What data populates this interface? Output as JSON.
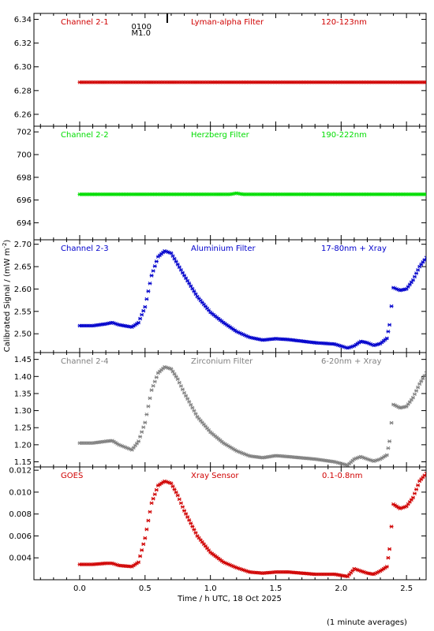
{
  "figure": {
    "ylabel": "Calibrated Signal / (mW m",
    "ylabel_sup": "-2",
    "ylabel_close": ")",
    "xlabel": "Time / h UTC, 18 Oct 2025",
    "footnote": "(1 minute averages)"
  },
  "flare_marker": {
    "class_label": "M1.0",
    "time_label": "0100",
    "x": 0.67
  },
  "chart_data": [
    {
      "type": "scatter",
      "channel": "Channel 2-1",
      "filter": "Lyman-alpha Filter",
      "band": "120-123nm",
      "color": "#d00000",
      "xlim": [
        -0.35,
        2.65
      ],
      "ylim": [
        6.25,
        6.345
      ],
      "yticks": [
        6.26,
        6.28,
        6.3,
        6.32,
        6.34
      ],
      "ytick_labels": [
        "6.26",
        "6.28",
        "6.30",
        "6.32",
        "6.34"
      ],
      "x": [
        0.0,
        0.1,
        0.2,
        0.3,
        0.4,
        0.5,
        0.6,
        0.7,
        0.8,
        0.9,
        1.0,
        1.2,
        1.4,
        1.6,
        1.8,
        2.0,
        2.2,
        2.4,
        2.6,
        2.65
      ],
      "y": [
        6.287,
        6.287,
        6.287,
        6.287,
        6.287,
        6.287,
        6.287,
        6.287,
        6.287,
        6.287,
        6.287,
        6.287,
        6.287,
        6.287,
        6.287,
        6.287,
        6.287,
        6.287,
        6.287,
        6.287
      ]
    },
    {
      "type": "scatter",
      "channel": "Channel 2-2",
      "filter": "Herzberg Filter",
      "band": "190-222nm",
      "color": "#00dd00",
      "xlim": [
        -0.35,
        2.65
      ],
      "ylim": [
        692.5,
        702.5
      ],
      "yticks": [
        694,
        696,
        698,
        700,
        702
      ],
      "ytick_labels": [
        "694",
        "696",
        "698",
        "700",
        "702"
      ],
      "x": [
        0.0,
        0.2,
        0.4,
        0.6,
        1.0,
        1.15,
        1.2,
        1.25,
        1.4,
        1.6,
        1.8,
        2.0,
        2.2,
        2.4,
        2.65
      ],
      "y": [
        696.5,
        696.5,
        696.5,
        696.5,
        696.5,
        696.5,
        696.6,
        696.5,
        696.5,
        696.5,
        696.5,
        696.5,
        696.5,
        696.5,
        696.5
      ]
    },
    {
      "type": "scatter",
      "channel": "Channel 2-3",
      "filter": "Aluminium Filter",
      "band": "17-80nm + Xray",
      "color": "#0000cc",
      "xlim": [
        -0.35,
        2.65
      ],
      "ylim": [
        2.458,
        2.71
      ],
      "yticks": [
        2.5,
        2.55,
        2.6,
        2.65,
        2.7
      ],
      "ytick_labels": [
        "2.50",
        "2.55",
        "2.60",
        "2.65",
        "2.70"
      ],
      "x": [
        0.0,
        0.1,
        0.2,
        0.25,
        0.3,
        0.4,
        0.45,
        0.5,
        0.55,
        0.6,
        0.65,
        0.7,
        0.75,
        0.8,
        0.9,
        1.0,
        1.1,
        1.2,
        1.3,
        1.4,
        1.5,
        1.6,
        1.8,
        1.95,
        2.05,
        2.1,
        2.15,
        2.2,
        2.25,
        2.3,
        2.35,
        2.37,
        2.4,
        2.45,
        2.5,
        2.55,
        2.6,
        2.65
      ],
      "y": [
        2.518,
        2.518,
        2.522,
        2.525,
        2.52,
        2.515,
        2.525,
        2.56,
        2.63,
        2.672,
        2.685,
        2.68,
        2.655,
        2.63,
        2.583,
        2.548,
        2.525,
        2.505,
        2.492,
        2.486,
        2.489,
        2.487,
        2.48,
        2.477,
        2.468,
        2.473,
        2.483,
        2.48,
        2.474,
        2.478,
        2.49,
        2.52,
        2.603,
        2.597,
        2.6,
        2.62,
        2.65,
        2.67
      ]
    },
    {
      "type": "scatter",
      "channel": "Channel 2-4",
      "filter": "Zirconium Filter",
      "band": "6-20nm + Xray",
      "color": "#808080",
      "xlim": [
        -0.35,
        2.65
      ],
      "ylim": [
        1.135,
        1.47
      ],
      "yticks": [
        1.15,
        1.2,
        1.25,
        1.3,
        1.35,
        1.4,
        1.45
      ],
      "ytick_labels": [
        "1.15",
        "1.20",
        "1.25",
        "1.30",
        "1.35",
        "1.40",
        "1.45"
      ],
      "x": [
        0.0,
        0.1,
        0.2,
        0.25,
        0.3,
        0.4,
        0.45,
        0.5,
        0.55,
        0.6,
        0.65,
        0.7,
        0.75,
        0.8,
        0.9,
        1.0,
        1.1,
        1.2,
        1.3,
        1.4,
        1.5,
        1.6,
        1.8,
        1.95,
        2.05,
        2.1,
        2.15,
        2.2,
        2.25,
        2.3,
        2.35,
        2.37,
        2.4,
        2.45,
        2.5,
        2.55,
        2.6,
        2.65
      ],
      "y": [
        1.205,
        1.205,
        1.21,
        1.212,
        1.2,
        1.185,
        1.21,
        1.265,
        1.36,
        1.41,
        1.428,
        1.422,
        1.392,
        1.352,
        1.282,
        1.237,
        1.205,
        1.182,
        1.167,
        1.162,
        1.168,
        1.165,
        1.158,
        1.15,
        1.14,
        1.158,
        1.165,
        1.158,
        1.152,
        1.158,
        1.17,
        1.21,
        1.318,
        1.308,
        1.312,
        1.338,
        1.378,
        1.41
      ]
    },
    {
      "type": "scatter",
      "channel": "GOES",
      "filter": "Xray Sensor",
      "band": "0.1-0.8nm",
      "color": "#d00000",
      "xlim": [
        -0.35,
        2.65
      ],
      "ylim": [
        0.002,
        0.0123
      ],
      "yticks": [
        0.004,
        0.006,
        0.008,
        0.01,
        0.012
      ],
      "ytick_labels": [
        "0.004",
        "0.006",
        "0.008",
        "0.010",
        "0.012"
      ],
      "x": [
        0.0,
        0.1,
        0.2,
        0.25,
        0.3,
        0.4,
        0.45,
        0.5,
        0.55,
        0.6,
        0.65,
        0.7,
        0.75,
        0.8,
        0.9,
        1.0,
        1.1,
        1.2,
        1.3,
        1.4,
        1.5,
        1.6,
        1.8,
        1.95,
        2.05,
        2.1,
        2.15,
        2.2,
        2.25,
        2.3,
        2.35,
        2.37,
        2.4,
        2.45,
        2.5,
        2.55,
        2.6,
        2.65
      ],
      "y": [
        0.0034,
        0.0034,
        0.0035,
        0.0035,
        0.0033,
        0.0032,
        0.0036,
        0.0058,
        0.009,
        0.0106,
        0.011,
        0.0108,
        0.0097,
        0.0083,
        0.006,
        0.0045,
        0.0036,
        0.0031,
        0.0027,
        0.0026,
        0.0027,
        0.0027,
        0.0025,
        0.0025,
        0.0023,
        0.003,
        0.0028,
        0.0026,
        0.0025,
        0.0028,
        0.0032,
        0.0048,
        0.0089,
        0.0085,
        0.0087,
        0.0095,
        0.011,
        0.0117
      ]
    }
  ],
  "x_axis": {
    "ticks": [
      0.0,
      0.5,
      1.0,
      1.5,
      2.0,
      2.5
    ],
    "tick_labels": [
      "0.0",
      "0.5",
      "1.0",
      "1.5",
      "2.0",
      "2.5"
    ]
  }
}
